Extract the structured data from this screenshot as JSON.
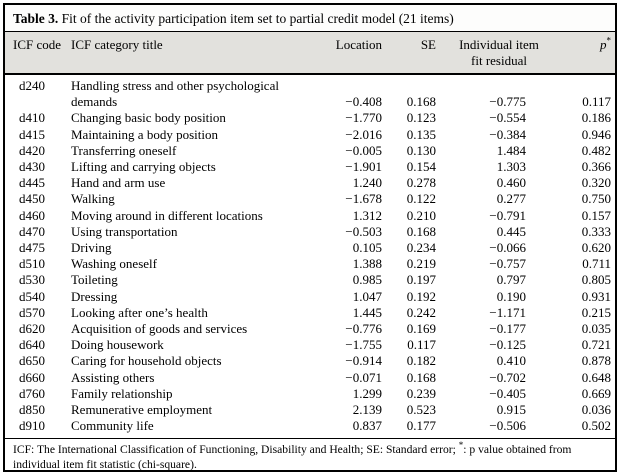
{
  "table": {
    "title_label": "Table 3.",
    "title_text": " Fit of the activity participation item set to partial credit model (21 items)",
    "columns": {
      "code": "ICF code",
      "title": "ICF category title",
      "location": "Location",
      "se": "SE",
      "residual": "Individual item\nfit residual",
      "p_base": "p",
      "p_sup": "*"
    },
    "rows": [
      {
        "code": "d240",
        "title": "Handling stress and other psychological\ndemands",
        "location": "−0.408",
        "se": "0.168",
        "residual": "−0.775",
        "p": "0.117"
      },
      {
        "code": "d410",
        "title": "Changing basic body position",
        "location": "−1.770",
        "se": "0.123",
        "residual": "−0.554",
        "p": "0.186"
      },
      {
        "code": "d415",
        "title": "Maintaining a body position",
        "location": "−2.016",
        "se": "0.135",
        "residual": "−0.384",
        "p": "0.946"
      },
      {
        "code": "d420",
        "title": "Transferring oneself",
        "location": "−0.005",
        "se": "0.130",
        "residual": "1.484",
        "p": "0.482"
      },
      {
        "code": "d430",
        "title": "Lifting and carrying objects",
        "location": "−1.901",
        "se": "0.154",
        "residual": "1.303",
        "p": "0.366"
      },
      {
        "code": "d445",
        "title": "Hand and arm use",
        "location": "1.240",
        "se": "0.278",
        "residual": "0.460",
        "p": "0.320"
      },
      {
        "code": "d450",
        "title": "Walking",
        "location": "−1.678",
        "se": "0.122",
        "residual": "0.277",
        "p": "0.750"
      },
      {
        "code": "d460",
        "title": "Moving around in different locations",
        "location": "1.312",
        "se": "0.210",
        "residual": "−0.791",
        "p": "0.157"
      },
      {
        "code": "d470",
        "title": "Using transportation",
        "location": "−0.503",
        "se": "0.168",
        "residual": "0.445",
        "p": "0.333"
      },
      {
        "code": "d475",
        "title": "Driving",
        "location": "0.105",
        "se": "0.234",
        "residual": "−0.066",
        "p": "0.620"
      },
      {
        "code": "d510",
        "title": "Washing oneself",
        "location": "1.388",
        "se": "0.219",
        "residual": "−0.757",
        "p": "0.711"
      },
      {
        "code": "d530",
        "title": "Toileting",
        "location": "0.985",
        "se": "0.197",
        "residual": "0.797",
        "p": "0.805"
      },
      {
        "code": "d540",
        "title": "Dressing",
        "location": "1.047",
        "se": "0.192",
        "residual": "0.190",
        "p": "0.931"
      },
      {
        "code": "d570",
        "title": "Looking after one’s health",
        "location": "1.445",
        "se": "0.242",
        "residual": "−1.171",
        "p": "0.215"
      },
      {
        "code": "d620",
        "title": "Acquisition of goods and services",
        "location": "−0.776",
        "se": "0.169",
        "residual": "−0.177",
        "p": "0.035"
      },
      {
        "code": "d640",
        "title": "Doing housework",
        "location": "−1.755",
        "se": "0.117",
        "residual": "−0.125",
        "p": "0.721"
      },
      {
        "code": "d650",
        "title": "Caring for household objects",
        "location": "−0.914",
        "se": "0.182",
        "residual": "0.410",
        "p": "0.878"
      },
      {
        "code": "d660",
        "title": "Assisting others",
        "location": "−0.071",
        "se": "0.168",
        "residual": "−0.702",
        "p": "0.648"
      },
      {
        "code": "d760",
        "title": "Family relationship",
        "location": "1.299",
        "se": "0.239",
        "residual": "−0.405",
        "p": "0.669"
      },
      {
        "code": "d850",
        "title": "Remunerative employment",
        "location": "2.139",
        "se": "0.523",
        "residual": "0.915",
        "p": "0.036"
      },
      {
        "code": "d910",
        "title": "Community life",
        "location": "0.837",
        "se": "0.177",
        "residual": "−0.506",
        "p": "0.502"
      }
    ],
    "footnote": {
      "part1": "ICF: The International Classification of Functioning, Disability and Health; SE: Standard error; ",
      "sup": "*",
      "part2": ": p value obtained from individual item fit statistic (chi-square)."
    }
  }
}
